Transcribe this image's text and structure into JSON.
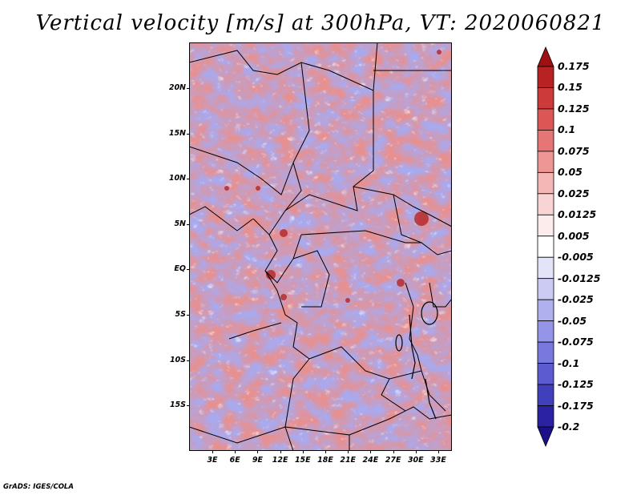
{
  "title": "Vertical velocity [m/s] at 300hPa, VT: 2020060821",
  "credit": "GrADS: IGES/COLA",
  "map": {
    "lat_labels": [
      "20N",
      "15N",
      "10N",
      "5N",
      "EQ",
      "5S",
      "10S",
      "15S"
    ],
    "lon_labels": [
      "3E",
      "6E",
      "9E",
      "12E",
      "15E",
      "18E",
      "21E",
      "24E",
      "27E",
      "30E",
      "33E"
    ],
    "lat_range": [
      -20,
      25
    ],
    "lon_range": [
      0,
      35
    ]
  },
  "colorbar": {
    "labels": [
      "0.175",
      "0.15",
      "0.125",
      "0.1",
      "0.075",
      "0.05",
      "0.025",
      "0.0125",
      "0.005",
      "-0.005",
      "-0.0125",
      "-0.025",
      "-0.05",
      "-0.075",
      "-0.1",
      "-0.125",
      "-0.175",
      "-0.2"
    ],
    "colors": [
      "#a01010",
      "#b82222",
      "#cc3a3a",
      "#dd5656",
      "#e67676",
      "#ee9696",
      "#f5b6b6",
      "#f9d4d4",
      "#fcecec",
      "#ffffff",
      "#e4e4f8",
      "#cbcbf4",
      "#b0b0ee",
      "#9494e8",
      "#7878de",
      "#5c5cd0",
      "#4040bc",
      "#2a22a2",
      "#1c0f8a"
    ],
    "top_color": "#a01010",
    "bottom_color": "#1c0f8a"
  }
}
